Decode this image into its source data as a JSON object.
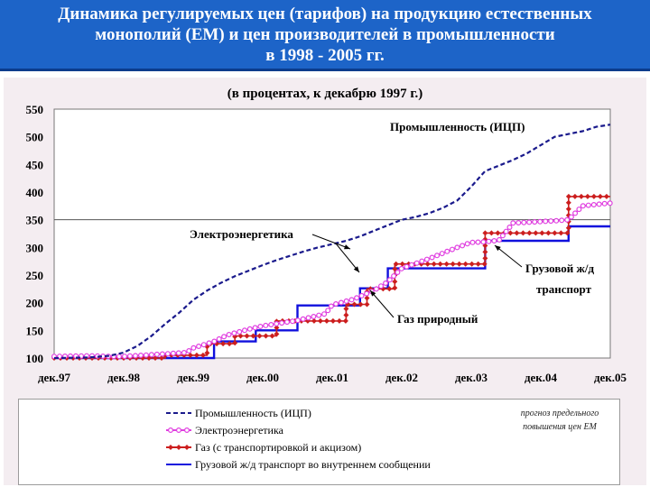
{
  "header": {
    "title_lines": [
      "Динамика регулируемых цен (тарифов) на продукцию естественных",
      "монополий (ЕМ) и цен производителей в промышленности",
      "в 1998 - 2005 гг."
    ]
  },
  "chart_data": {
    "type": "line",
    "title": "(в процентах, к декабрю 1997 г.)",
    "xlabel": "",
    "ylabel": "",
    "x_ticks": [
      "дек.97",
      "дек.98",
      "дек.99",
      "дек.00",
      "дек.01",
      "дек.02",
      "дек.03",
      "дек.04",
      "дек.05"
    ],
    "y_ticks": [
      100,
      150,
      200,
      250,
      300,
      350,
      400,
      450,
      500,
      550
    ],
    "xlim": [
      0,
      8
    ],
    "ylim": [
      100,
      550
    ],
    "grid": "horizontal line at 350",
    "legend_placement": "bottom",
    "series": [
      {
        "name": "Промышленность (ИЦП)",
        "color": "#1a1a8c",
        "style": "dashed",
        "points": [
          [
            0,
            100
          ],
          [
            0.5,
            101
          ],
          [
            0.8,
            104
          ],
          [
            1,
            110
          ],
          [
            1.2,
            122
          ],
          [
            1.4,
            140
          ],
          [
            1.6,
            162
          ],
          [
            1.8,
            182
          ],
          [
            2,
            205
          ],
          [
            2.2,
            222
          ],
          [
            2.4,
            236
          ],
          [
            2.6,
            248
          ],
          [
            2.8,
            258
          ],
          [
            3,
            268
          ],
          [
            3.2,
            277
          ],
          [
            3.4,
            285
          ],
          [
            3.6,
            293
          ],
          [
            3.8,
            300
          ],
          [
            4,
            306
          ],
          [
            4.2,
            312
          ],
          [
            4.4,
            320
          ],
          [
            4.6,
            330
          ],
          [
            4.8,
            340
          ],
          [
            5,
            350
          ],
          [
            5.2,
            355
          ],
          [
            5.4,
            362
          ],
          [
            5.6,
            372
          ],
          [
            5.8,
            385
          ],
          [
            6,
            410
          ],
          [
            6.2,
            438
          ],
          [
            6.4,
            448
          ],
          [
            6.6,
            458
          ],
          [
            6.8,
            470
          ],
          [
            7,
            485
          ],
          [
            7.2,
            500
          ],
          [
            7.4,
            505
          ],
          [
            7.6,
            510
          ],
          [
            7.8,
            518
          ],
          [
            8,
            522
          ]
        ]
      },
      {
        "name": "Электроэнергетика",
        "color": "#e040e0",
        "style": "circle markers",
        "points": [
          [
            0,
            103
          ],
          [
            0.5,
            104
          ],
          [
            0.8,
            103
          ],
          [
            1,
            103
          ],
          [
            1.4,
            106
          ],
          [
            1.9,
            110
          ],
          [
            2,
            118
          ],
          [
            2.3,
            130
          ],
          [
            2.5,
            142
          ],
          [
            2.8,
            152
          ],
          [
            3,
            158
          ],
          [
            3.2,
            162
          ],
          [
            3.5,
            168
          ],
          [
            3.9,
            180
          ],
          [
            4,
            196
          ],
          [
            4.3,
            206
          ],
          [
            4.6,
            222
          ],
          [
            4.8,
            238
          ],
          [
            5,
            262
          ],
          [
            5.4,
            280
          ],
          [
            5.8,
            300
          ],
          [
            6,
            309
          ],
          [
            6.2,
            310
          ],
          [
            6.4,
            313
          ],
          [
            6.6,
            344
          ],
          [
            6.9,
            346
          ],
          [
            7.2,
            348
          ],
          [
            7.4,
            350
          ],
          [
            7.6,
            375
          ],
          [
            7.9,
            379
          ],
          [
            8,
            380
          ]
        ]
      },
      {
        "name": "Газ (с транспортировкой и акцизом)",
        "color": "#cc1e1e",
        "style": "diamond markers",
        "steps": [
          [
            0,
            100
          ],
          [
            1.6,
            105
          ],
          [
            2.2,
            126
          ],
          [
            2.6,
            140
          ],
          [
            3.2,
            167
          ],
          [
            3.9,
            167
          ],
          [
            4.2,
            197
          ],
          [
            4.5,
            225
          ],
          [
            4.9,
            270
          ],
          [
            5.8,
            270
          ],
          [
            6.2,
            326
          ],
          [
            6.9,
            326
          ],
          [
            7.4,
            392
          ],
          [
            8,
            392
          ]
        ]
      },
      {
        "name": "Грузовой ж/д транспорт во внутреннем сообщении",
        "color": "#1010dd",
        "style": "solid",
        "steps": [
          [
            0,
            100
          ],
          [
            1.9,
            100
          ],
          [
            2.3,
            130
          ],
          [
            2.9,
            150
          ],
          [
            3.5,
            195
          ],
          [
            4,
            195
          ],
          [
            4.4,
            226
          ],
          [
            4.8,
            262
          ],
          [
            5.8,
            262
          ],
          [
            6.2,
            312
          ],
          [
            7,
            312
          ],
          [
            7.4,
            338
          ],
          [
            8,
            338
          ]
        ]
      }
    ],
    "annotations": [
      {
        "text": "Промышленность (ИЦП)"
      },
      {
        "text": "Электроэнергетика"
      },
      {
        "text": "Грузовой ж/д"
      },
      {
        "text": "транспорт"
      },
      {
        "text": "Газ природный"
      }
    ],
    "side_note": [
      "прогноз предельного",
      "повышения цен ЕМ"
    ]
  }
}
